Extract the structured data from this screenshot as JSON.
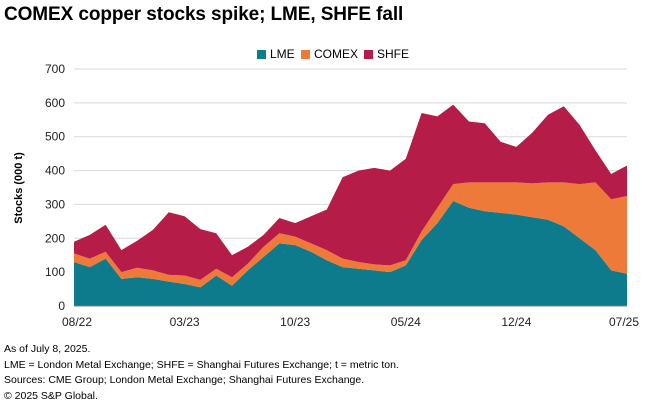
{
  "title": "COMEX copper stocks spike; LME, SHFE fall",
  "legend": [
    {
      "label": "LME",
      "color": "#0d7b8c"
    },
    {
      "label": "COMEX",
      "color": "#ee7a3a"
    },
    {
      "label": "SHFE",
      "color": "#b51d48"
    }
  ],
  "notes": [
    "As of July 8, 2025.",
    "LME = London Metal Exchange; SHFE = Shanghai Futures Exchange; t = metric ton.",
    "Sources: CME Group; London Metal Exchange; Shanghai Futures Exchange.",
    "© 2025 S&P Global."
  ],
  "chart_data": {
    "type": "area",
    "stacked": true,
    "ylabel": "Stocks (000 t)",
    "ylim": [
      0,
      700
    ],
    "yticks": [
      0,
      100,
      200,
      300,
      400,
      500,
      600,
      700
    ],
    "xtick_labels": [
      "08/22",
      "03/23",
      "10/23",
      "05/24",
      "12/24",
      "07/25"
    ],
    "x_start": "2022-08",
    "x_end": "2025-07",
    "x": [
      "2022-08",
      "2022-09",
      "2022-10",
      "2022-11",
      "2022-12",
      "2023-01",
      "2023-02",
      "2023-03",
      "2023-04",
      "2023-05",
      "2023-06",
      "2023-07",
      "2023-08",
      "2023-09",
      "2023-10",
      "2023-11",
      "2023-12",
      "2024-01",
      "2024-02",
      "2024-03",
      "2024-04",
      "2024-05",
      "2024-06",
      "2024-07",
      "2024-08",
      "2024-09",
      "2024-10",
      "2024-11",
      "2024-12",
      "2025-01",
      "2025-02",
      "2025-03",
      "2025-04",
      "2025-05",
      "2025-06",
      "2025-07"
    ],
    "series": [
      {
        "name": "LME",
        "color": "#0d7b8c",
        "values": [
          130,
          115,
          140,
          80,
          85,
          80,
          72,
          65,
          55,
          90,
          60,
          105,
          145,
          185,
          180,
          160,
          135,
          115,
          110,
          105,
          100,
          120,
          195,
          245,
          310,
          290,
          280,
          275,
          270,
          262,
          255,
          235,
          200,
          165,
          105,
          95
        ]
      },
      {
        "name": "COMEX",
        "color": "#ee7a3a",
        "values": [
          25,
          25,
          20,
          20,
          28,
          25,
          20,
          25,
          22,
          20,
          25,
          20,
          30,
          30,
          25,
          25,
          30,
          25,
          20,
          18,
          20,
          15,
          25,
          45,
          50,
          75,
          85,
          90,
          95,
          100,
          110,
          130,
          160,
          200,
          210,
          230
        ]
      },
      {
        "name": "SHFE",
        "color": "#b51d48",
        "values": [
          35,
          70,
          80,
          65,
          80,
          120,
          185,
          175,
          150,
          105,
          65,
          50,
          35,
          45,
          40,
          80,
          120,
          240,
          270,
          285,
          280,
          300,
          350,
          270,
          235,
          180,
          175,
          120,
          105,
          150,
          200,
          225,
          175,
          95,
          75,
          90
        ]
      }
    ]
  }
}
